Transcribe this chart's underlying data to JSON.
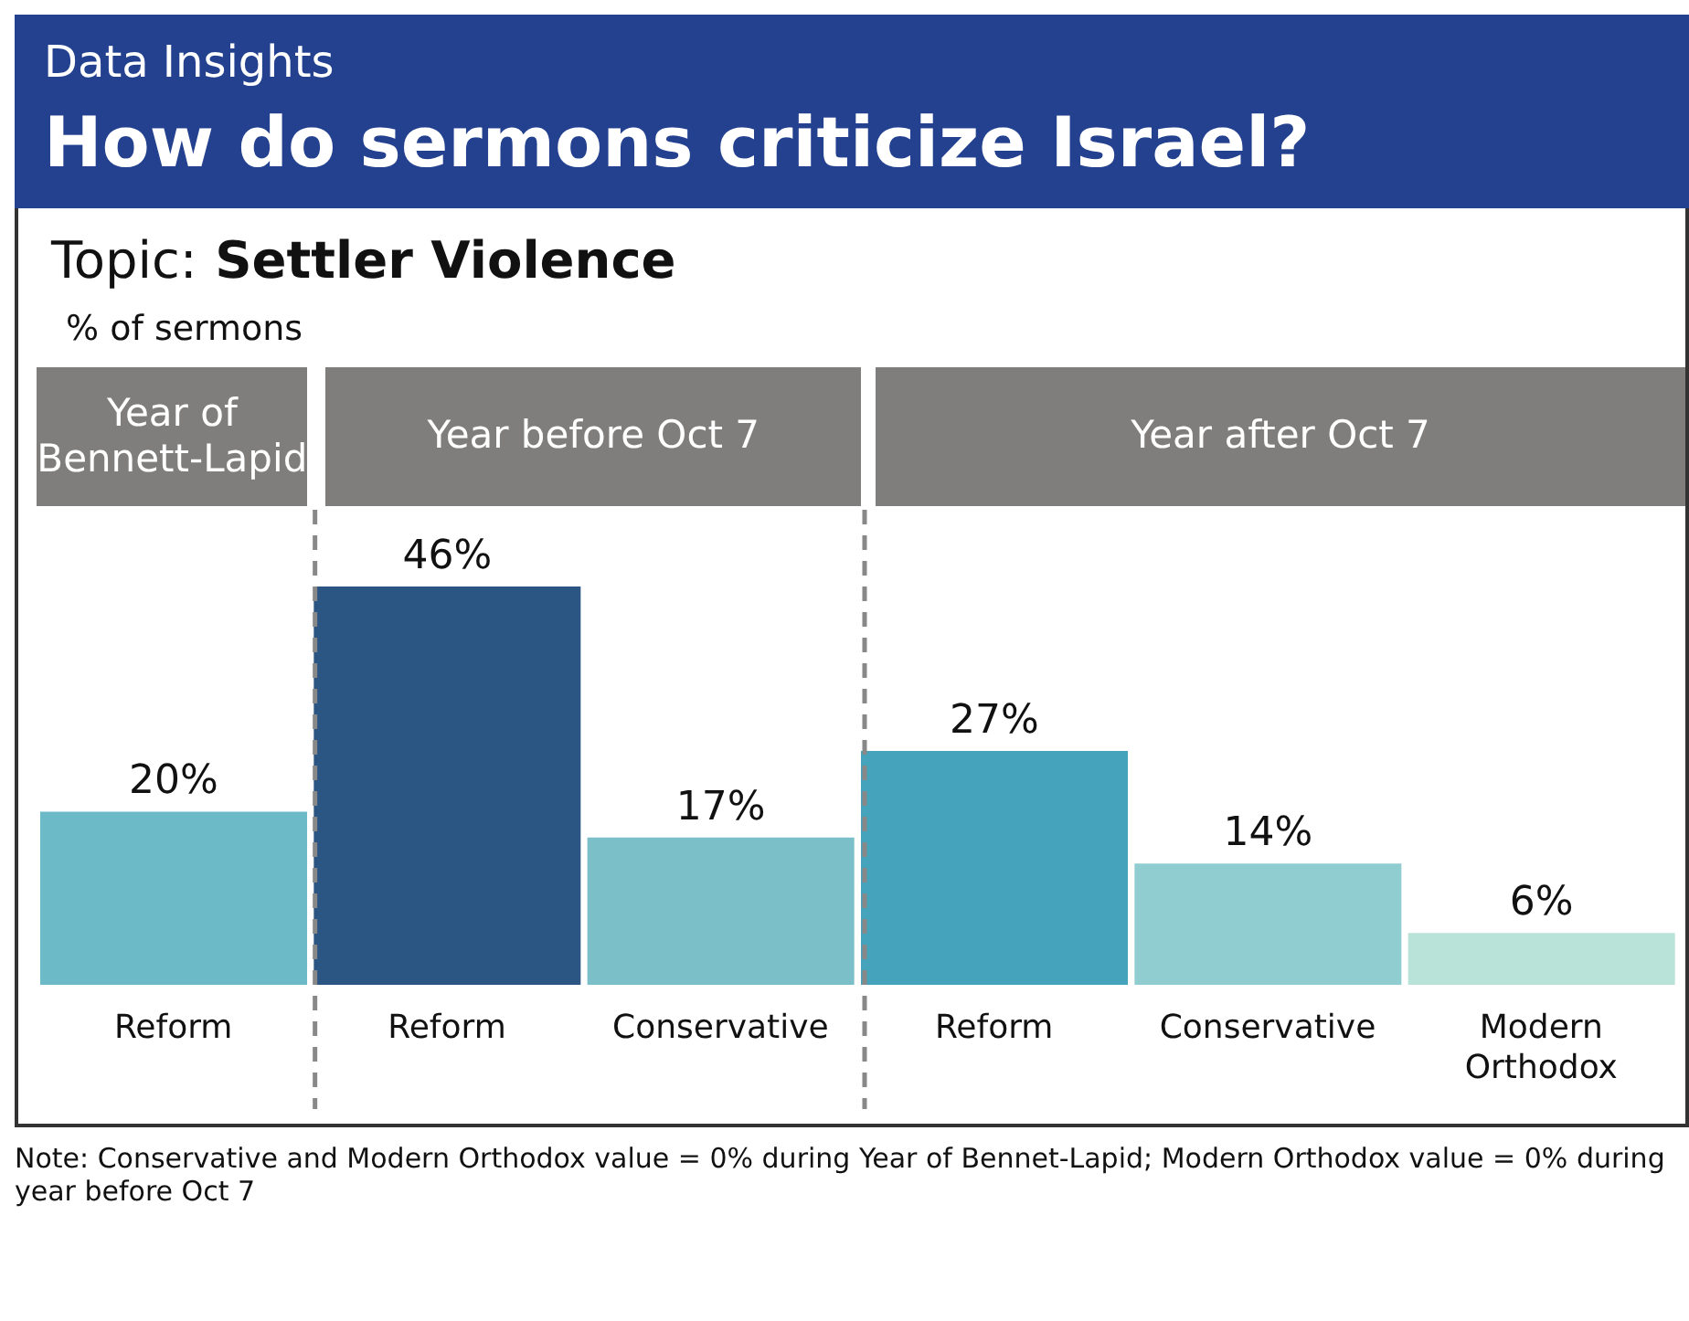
{
  "chart_data": {
    "type": "bar",
    "title": "How do sermons criticize Israel?",
    "subtitle": "Topic:  Settler Violence",
    "categories": [
      "Reform",
      "Reform",
      "Conservative",
      "Reform",
      "Conservative",
      "Modern Orthodox"
    ],
    "values": [
      20,
      46,
      17,
      27,
      14,
      6
    ],
    "colors": [
      "#6cb9c7",
      "#2b5582",
      "#7bbfc8",
      "#45a3bb",
      "#90cdd1",
      "#b9e3d8"
    ],
    "value_labels": [
      "20%",
      "46%",
      "17%",
      "27%",
      "14%",
      "6%"
    ],
    "annotations": [
      "Data Insights",
      "% of sermons",
      "Year of Bennett-Lapid",
      "Year before Oct 7",
      "Year after Oct 7",
      "Note: Conservative and Modern Orthodox value = 0% during Year of Bennet-Lapid; Modern Orthodox value = 0% during year before Oct 7"
    ]
  }
}
